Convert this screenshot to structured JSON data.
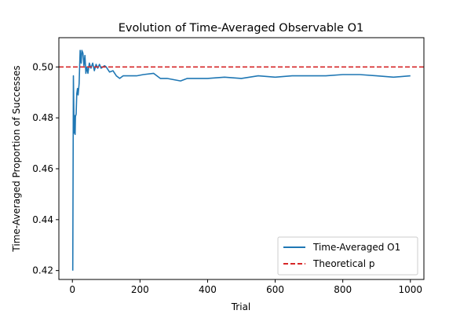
{
  "chart_data": {
    "type": "line",
    "title": "Evolution of Time-Averaged Observable O1",
    "xlabel": "Trial",
    "ylabel": "Time-Averaged Proportion of Successes",
    "xlim": [
      -40,
      1040
    ],
    "ylim": [
      0.4165,
      0.5115
    ],
    "xticks": [
      0,
      200,
      400,
      600,
      800,
      1000
    ],
    "yticks": [
      0.42,
      0.44,
      0.46,
      0.48,
      0.5
    ],
    "ytick_labels": [
      "0.42",
      "0.44",
      "0.46",
      "0.48",
      "0.50"
    ],
    "grid": false,
    "legend_position": "lower-right",
    "series": [
      {
        "name": "Time-Averaged O1",
        "color": "#1f77b4",
        "style": "solid",
        "x": [
          1,
          3,
          5,
          6,
          8,
          9,
          11,
          13,
          15,
          17,
          20,
          23,
          26,
          28,
          31,
          34,
          37,
          40,
          43,
          46,
          50,
          55,
          60,
          65,
          70,
          75,
          80,
          85,
          90,
          95,
          100,
          110,
          120,
          130,
          140,
          150,
          170,
          190,
          210,
          240,
          260,
          280,
          300,
          320,
          340,
          360,
          400,
          450,
          500,
          550,
          600,
          650,
          700,
          750,
          800,
          850,
          900,
          950,
          1000
        ],
        "y": [
          0.42,
          0.4965,
          0.474,
          0.481,
          0.4735,
          0.4805,
          0.4815,
          0.4895,
          0.4915,
          0.489,
          0.4935,
          0.5065,
          0.5015,
          0.5065,
          0.5055,
          0.5005,
          0.5045,
          0.4975,
          0.5,
          0.4975,
          0.5015,
          0.4995,
          0.5015,
          0.4985,
          0.501,
          0.4995,
          0.501,
          0.4995,
          0.5,
          0.5005,
          0.5,
          0.498,
          0.4985,
          0.4965,
          0.4955,
          0.4965,
          0.4965,
          0.4965,
          0.497,
          0.4975,
          0.4955,
          0.4955,
          0.495,
          0.4945,
          0.4955,
          0.4955,
          0.4955,
          0.496,
          0.4955,
          0.4965,
          0.496,
          0.4965,
          0.4965,
          0.4965,
          0.497,
          0.497,
          0.4965,
          0.496,
          0.4965
        ]
      },
      {
        "name": "Theoretical p",
        "color": "#d62728",
        "style": "dashed",
        "y_constant": 0.5
      }
    ]
  }
}
